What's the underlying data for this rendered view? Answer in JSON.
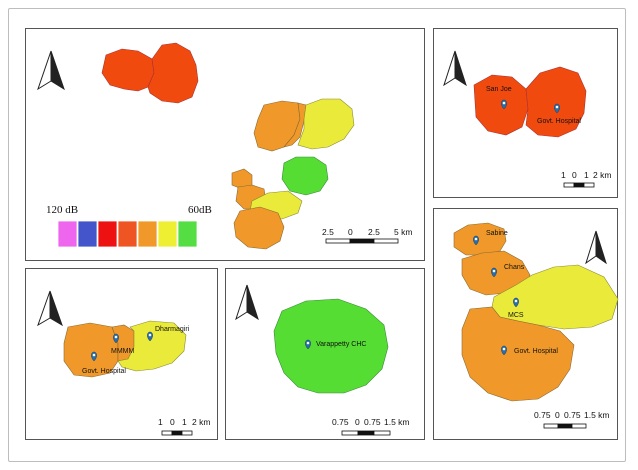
{
  "legend": {
    "high_label": "120 dB",
    "low_label": "60dB",
    "colors": [
      "#ee66ee",
      "#4455cc",
      "#ee1111",
      "#ee5522",
      "#f0992a",
      "#eeee33",
      "#55dd44"
    ]
  },
  "colors": {
    "red_orange": "#f04a0f",
    "orange": "#f0992a",
    "yellow": "#eaea3a",
    "green": "#55dd33",
    "pin": "#2a6fa8"
  },
  "panels": {
    "overview": {
      "scale_ticks": [
        "2.5",
        "0",
        "2.5",
        "5 km"
      ]
    },
    "top_right": {
      "labels": [
        "San Joe",
        "Govt. Hospital"
      ],
      "scale_ticks": [
        "1",
        "0",
        "1",
        "2 km"
      ]
    },
    "bottom_left": {
      "labels": [
        "Dharmagiri",
        "MMMM",
        "Govt. Hospital"
      ],
      "scale_ticks": [
        "1",
        "0",
        "1",
        "2 km"
      ]
    },
    "bottom_middle": {
      "labels": [
        "Varappetty CHC"
      ],
      "scale_ticks": [
        "0.75",
        "0",
        "0.75",
        "1.5 km"
      ]
    },
    "right_tall": {
      "labels": [
        "Sabine",
        "Chans",
        "MCS",
        "Govt. Hospital"
      ],
      "scale_ticks": [
        "0.75",
        "0",
        "0.75",
        "1.5 km"
      ]
    }
  }
}
